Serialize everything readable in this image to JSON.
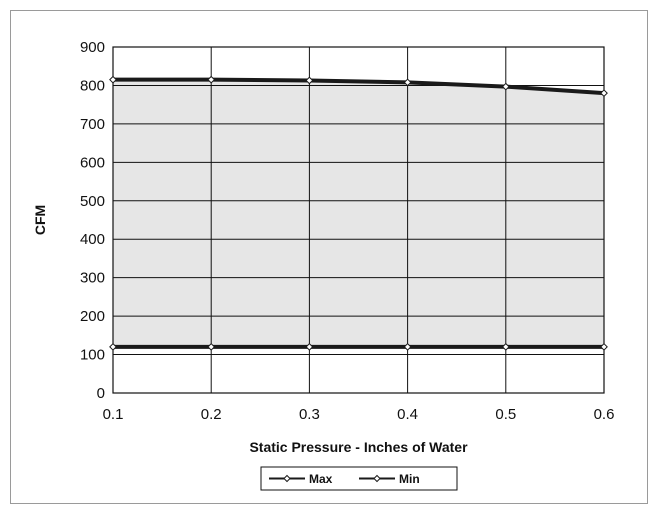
{
  "chart_data": {
    "type": "area",
    "title": "",
    "xlabel": "Static Pressure - Inches of Water",
    "ylabel": "CFM",
    "x": [
      0.1,
      0.2,
      0.3,
      0.4,
      0.5,
      0.6
    ],
    "x_tick_labels": [
      "0.1",
      "0.2",
      "0.3",
      "0.4",
      "0.5",
      "0.6"
    ],
    "y_ticks": [
      0,
      100,
      200,
      300,
      400,
      500,
      600,
      700,
      800,
      900
    ],
    "y_tick_labels": [
      "0",
      "100",
      "200",
      "300",
      "400",
      "500",
      "600",
      "700",
      "800",
      "900"
    ],
    "xlim": [
      0.1,
      0.6
    ],
    "ylim": [
      0,
      900
    ],
    "grid": true,
    "legend_position": "bottom-center",
    "fill_between_series": true,
    "series": [
      {
        "name": "Max",
        "values": [
          815,
          815,
          813,
          808,
          797,
          780
        ]
      },
      {
        "name": "Min",
        "values": [
          120,
          120,
          120,
          120,
          120,
          120
        ]
      }
    ],
    "colors": {
      "fill": "#e6e6e6",
      "line": "#1a1a1a",
      "grid": "#111111",
      "frame": "#9a9a9a"
    }
  }
}
